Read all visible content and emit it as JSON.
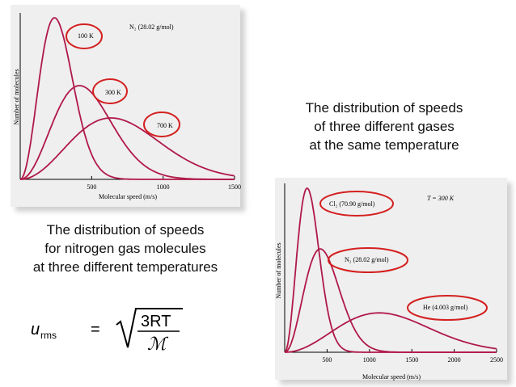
{
  "caption_right": [
    "The distribution of speeds",
    "of three different gases",
    "at the same temperature"
  ],
  "caption_left": [
    "The distribution of speeds",
    "for nitrogen gas molecules",
    "at three different temperatures"
  ],
  "formula": {
    "lhs": "u",
    "sub": "rms",
    "eq": "=",
    "num": "3RT",
    "den": "ℳ"
  },
  "colors": {
    "curve": "#b01848",
    "circle": "#d42020",
    "panel": "#efefef"
  },
  "chart_data": [
    {
      "type": "line",
      "title": "N₂ (28.02 g/mol)",
      "xlabel": "Molecular speed (m/s)",
      "ylabel": "Number of molecules",
      "xlim": [
        0,
        1500
      ],
      "xticks": [
        "500",
        "1000",
        "1500"
      ],
      "xtick_values": [
        500,
        1000,
        1500
      ],
      "series": [
        {
          "name": "100 K",
          "peak_speed": 240,
          "peak_height": 1.0
        },
        {
          "name": "300 K",
          "peak_speed": 415,
          "peak_height": 0.58
        },
        {
          "name": "700 K",
          "peak_speed": 635,
          "peak_height": 0.38
        }
      ],
      "annotations": [
        "100 K",
        "300 K",
        "700 K"
      ]
    },
    {
      "type": "line",
      "title": "T = 300 K",
      "xlabel": "Molecular speed (m/s)",
      "ylabel": "Number of molecules",
      "xlim": [
        0,
        2500
      ],
      "xticks": [
        "500",
        "1000",
        "1500",
        "2000",
        "2500"
      ],
      "xtick_values": [
        500,
        1000,
        1500,
        2000,
        2500
      ],
      "series": [
        {
          "name": "Cl₂ (70.90 g/mol)",
          "peak_speed": 265,
          "peak_height": 1.0
        },
        {
          "name": "N₂ (28.02 g/mol)",
          "peak_speed": 420,
          "peak_height": 0.63
        },
        {
          "name": "He (4.003 g/mol)",
          "peak_speed": 1115,
          "peak_height": 0.24
        }
      ],
      "annotations": [
        "Cl₂ (70.90 g/mol)",
        "N₂ (28.02 g/mol)",
        "He (4.003 g/mol)"
      ]
    }
  ]
}
